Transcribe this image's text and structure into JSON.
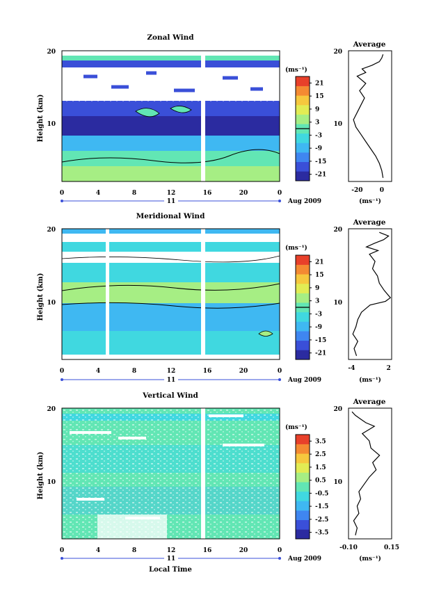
{
  "colors": {
    "scale": [
      "#2b2ba0",
      "#3a4fd8",
      "#3f86f0",
      "#3fb8f2",
      "#40d8e0",
      "#62e6b4",
      "#a6ee84",
      "#e2ec54",
      "#f6c83e",
      "#f48a32",
      "#e8402a"
    ],
    "missing": "#ffffff",
    "line": "#000000"
  },
  "chart_data": [
    {
      "type": "heatmap",
      "title": "Zonal Wind",
      "ylabel": "Height (km)",
      "ylim": [
        2,
        20
      ],
      "yticks": [
        "20",
        "10"
      ],
      "x_ticks": [
        "0",
        "4",
        "8",
        "12",
        "16",
        "20",
        "0"
      ],
      "date_mid": "11",
      "date_label": "Aug 2009",
      "colorbar_unit": "(ms⁻¹)",
      "colorbar_labels": [
        "21",
        "15",
        "9",
        "3",
        "-3",
        "-9",
        "-15",
        "-21"
      ],
      "colorbar_range": [
        -24,
        24
      ],
      "zero_line": true,
      "profile": {
        "title": "Average",
        "xlabel": "(ms⁻¹)",
        "xlim": [
          -27,
          8
        ],
        "xtick_labels": [
          "-20",
          "0"
        ],
        "xtick_values": [
          -20,
          0
        ],
        "heights": [
          2.5,
          3.5,
          4.5,
          5.5,
          6.5,
          7.5,
          8.5,
          9.5,
          10.5,
          11.5,
          12.5,
          13.5,
          14.5,
          15.5,
          16.5,
          17.0,
          17.5,
          18.0,
          18.5,
          19.0,
          19.5
        ],
        "values": [
          1,
          0,
          -2,
          -5,
          -9,
          -13,
          -17,
          -21,
          -23,
          -20,
          -17,
          -14,
          -18,
          -13,
          -20,
          -13,
          -16,
          -8,
          -2,
          0,
          1
        ]
      }
    },
    {
      "type": "heatmap",
      "title": "Meridional Wind",
      "ylabel": "Height (km)",
      "ylim": [
        2,
        20
      ],
      "yticks": [
        "20",
        "10"
      ],
      "x_ticks": [
        "0",
        "4",
        "8",
        "12",
        "16",
        "20",
        "0"
      ],
      "date_mid": "11",
      "date_label": "Aug 2009",
      "colorbar_unit": "(ms⁻¹)",
      "colorbar_labels": [
        "21",
        "15",
        "9",
        "3",
        "-3",
        "-9",
        "-15",
        "-21"
      ],
      "colorbar_range": [
        -24,
        24
      ],
      "zero_line": true,
      "profile": {
        "title": "Average",
        "xlabel": "(ms⁻¹)",
        "xlim": [
          -4.5,
          2.5
        ],
        "xtick_labels": [
          "-4",
          "2"
        ],
        "xtick_values": [
          -4,
          2
        ],
        "heights": [
          2.5,
          3.5,
          4.5,
          5.5,
          6.5,
          7.5,
          8.5,
          9.5,
          10.0,
          10.5,
          11.5,
          12.5,
          13.5,
          14.5,
          15.5,
          16.5,
          17.0,
          17.5,
          18.0,
          18.5,
          19.0,
          19.5
        ],
        "values": [
          -3.2,
          -3.6,
          -3.0,
          -3.8,
          -3.3,
          -3.0,
          -2.4,
          -1.0,
          1.5,
          2.3,
          1.3,
          0.5,
          0.2,
          -0.6,
          -0.2,
          -1.1,
          0.3,
          -1.6,
          -0.3,
          1.2,
          2.0,
          0.5
        ]
      }
    },
    {
      "type": "heatmap",
      "title": "Vertical Wind",
      "ylabel": "Height (km)",
      "ylim": [
        2,
        20
      ],
      "yticks": [
        "20",
        "10"
      ],
      "x_ticks": [
        "0",
        "4",
        "8",
        "12",
        "16",
        "20",
        "0"
      ],
      "date_mid": "11",
      "date_label": "Aug 2009",
      "xlabel": "Local Time",
      "colorbar_unit": "(ms⁻¹)",
      "colorbar_labels": [
        "3.5",
        "2.5",
        "1.5",
        "0.5",
        "-0.5",
        "-1.5",
        "-2.5",
        "-3.5"
      ],
      "colorbar_range": [
        -4,
        4
      ],
      "zero_line": false,
      "profile": {
        "title": "Average",
        "xlabel": "(ms⁻¹)",
        "xlim": [
          -0.1,
          0.15
        ],
        "xtick_labels": [
          "-0.10",
          "0.15"
        ],
        "xtick_values": [
          -0.1,
          0.15
        ],
        "heights": [
          2.5,
          3.5,
          4.5,
          5.5,
          6.5,
          7.5,
          8.5,
          9.5,
          10.5,
          11.5,
          12.5,
          13.5,
          14.5,
          15.5,
          16.5,
          17.5,
          18.0,
          18.5,
          19.0,
          19.5
        ],
        "values": [
          -0.06,
          -0.05,
          -0.07,
          -0.04,
          -0.05,
          -0.03,
          -0.04,
          -0.01,
          0.02,
          0.06,
          0.04,
          0.08,
          0.03,
          0.02,
          -0.02,
          0.05,
          0.0,
          -0.03,
          -0.06,
          -0.08
        ]
      }
    }
  ]
}
